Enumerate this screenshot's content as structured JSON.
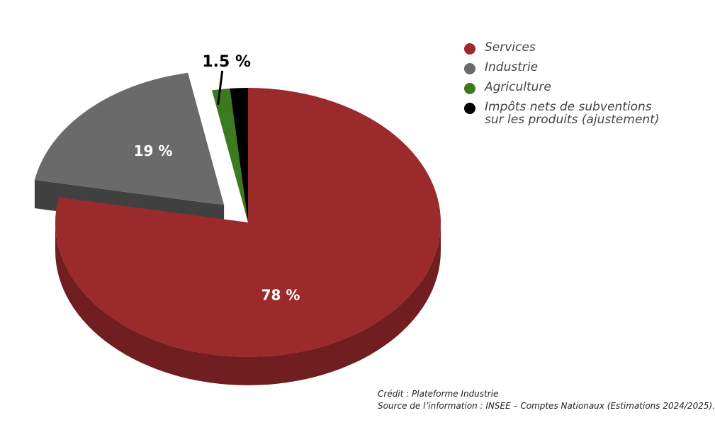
{
  "chart_data": {
    "type": "pie",
    "style": "3d-exploded",
    "categories": [
      "Services",
      "Industrie",
      "Agriculture",
      "Impôts nets de subventions sur les produits (ajustement)"
    ],
    "values": [
      78,
      19,
      1.5,
      1.5
    ],
    "data_labels": [
      "78 %",
      "19 %",
      "1.5 %",
      ""
    ],
    "colors": [
      "#9b2a2d",
      "#6a6a6a",
      "#3c7a1f",
      "#000000"
    ],
    "exploded": [
      false,
      true,
      false,
      false
    ],
    "legend": {
      "placement": "top-right",
      "entries": [
        "Services",
        "Industrie",
        "Agriculture",
        "Impôts nets de subventions\nsur les produits (ajustement)"
      ]
    }
  },
  "credits": {
    "line1": "Crédit : Plateforme Industrie",
    "line2": "Source de l’information : INSEE – Comptes Nationaux (Estimations 2024/2025)."
  }
}
